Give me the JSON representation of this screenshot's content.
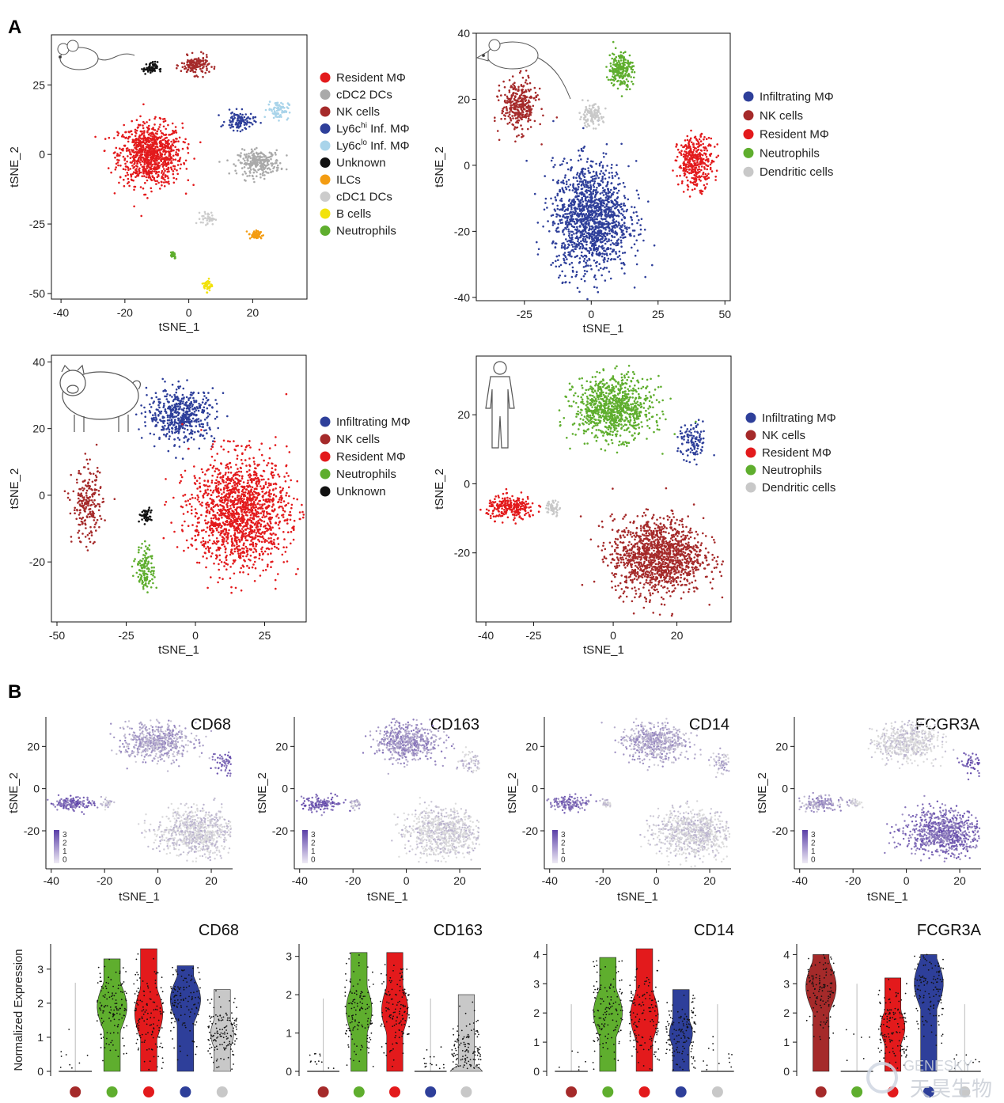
{
  "panel_labels": [
    "A",
    "B"
  ],
  "colors": {
    "resident": "#e31a1c",
    "nk": "#a52a2a",
    "inf": "#2e3f9a",
    "ly6clo": "#a9d4ea",
    "unknown": "#111111",
    "ilc": "#f39c12",
    "cdc1": "#cccccc",
    "cdc2": "#aaaaaa",
    "bcell": "#f2e20a",
    "neut": "#5fae2e",
    "dc": "#c8c8c8",
    "expr_low": "#dcdcdc",
    "expr_high": "#5a3ea8"
  },
  "icons": [
    "mouse-icon",
    "rat-icon",
    "pig-icon",
    "human-icon"
  ],
  "chart_data": [
    {
      "type": "scatter",
      "name_ref": "mouse",
      "xlabel": "tSNE_1",
      "ylabel": "tSNE_2",
      "xlim": [
        -43,
        37
      ],
      "ylim": [
        -52,
        43
      ],
      "xticks": [
        -40,
        -20,
        0,
        20
      ],
      "yticks": [
        -50,
        -25,
        0,
        25
      ],
      "legend_position": "right",
      "clusters": [
        {
          "label": "Resident MΦ",
          "color_key": "resident",
          "center": [
            -12,
            0
          ],
          "spread": [
            9,
            10
          ],
          "n": 900
        },
        {
          "label": "cDC2 DCs",
          "color_key": "cdc2",
          "center": [
            22,
            -3
          ],
          "spread": [
            6,
            4
          ],
          "n": 260
        },
        {
          "label": "NK cells",
          "color_key": "nk",
          "center": [
            2,
            32
          ],
          "spread": [
            4,
            3
          ],
          "n": 150
        },
        {
          "label": "Ly6c",
          "sup": "hi",
          "label_tail": " Inf. MΦ",
          "color_key": "inf",
          "center": [
            16,
            12
          ],
          "spread": [
            4,
            3
          ],
          "n": 110
        },
        {
          "label": "Ly6c",
          "sup": "lo",
          "label_tail": " Inf. MΦ",
          "color_key": "ly6clo",
          "center": [
            28,
            16
          ],
          "spread": [
            3,
            3
          ],
          "n": 80
        },
        {
          "label": "Unknown",
          "color_key": "unknown",
          "center": [
            -12,
            31
          ],
          "spread": [
            2,
            2
          ],
          "n": 60
        },
        {
          "label": "ILCs",
          "color_key": "ilc",
          "center": [
            21,
            -29
          ],
          "spread": [
            2,
            1.5
          ],
          "n": 50
        },
        {
          "label": "cDC1 DCs",
          "color_key": "cdc1",
          "center": [
            6,
            -23
          ],
          "spread": [
            2,
            2
          ],
          "n": 40
        },
        {
          "label": "B cells",
          "color_key": "bcell",
          "center": [
            6,
            -47
          ],
          "spread": [
            1.2,
            2
          ],
          "n": 45
        },
        {
          "label": "Neutrophils",
          "color_key": "neut",
          "center": [
            -5,
            -36
          ],
          "spread": [
            1,
            1.3
          ],
          "n": 30
        }
      ]
    },
    {
      "type": "scatter",
      "name_ref": "rat",
      "xlabel": "tSNE_1",
      "ylabel": "tSNE_2",
      "xlim": [
        -43,
        52
      ],
      "ylim": [
        -41,
        40
      ],
      "xticks": [
        -25,
        0,
        25,
        50
      ],
      "yticks": [
        -40,
        -20,
        0,
        20,
        40
      ],
      "legend_position": "right",
      "clusters": [
        {
          "label": "Infiltrating MΦ",
          "color_key": "inf",
          "center": [
            0,
            -16
          ],
          "spread": [
            13,
            15
          ],
          "n": 1400
        },
        {
          "label": "NK cells",
          "color_key": "nk",
          "center": [
            -27,
            18
          ],
          "spread": [
            6,
            7
          ],
          "n": 330
        },
        {
          "label": "Resident MΦ",
          "color_key": "resident",
          "center": [
            39,
            1
          ],
          "spread": [
            6,
            7
          ],
          "n": 360
        },
        {
          "label": "Neutrophils",
          "color_key": "neut",
          "center": [
            11,
            29
          ],
          "spread": [
            4,
            5
          ],
          "n": 230
        },
        {
          "label": "Dendritic cells",
          "color_key": "dc",
          "center": [
            0,
            15
          ],
          "spread": [
            4,
            3
          ],
          "n": 110
        }
      ]
    },
    {
      "type": "scatter",
      "name_ref": "pig",
      "xlabel": "tSNE_1",
      "ylabel": "tSNE_2",
      "xlim": [
        -52,
        40
      ],
      "ylim": [
        -38,
        42
      ],
      "xticks": [
        -50,
        -25,
        0,
        25
      ],
      "yticks": [
        -20,
        0,
        20,
        40
      ],
      "legend_position": "right",
      "clusters": [
        {
          "label": "Infiltrating MΦ",
          "color_key": "inf",
          "center": [
            -5,
            24
          ],
          "spread": [
            11,
            7
          ],
          "n": 500
        },
        {
          "label": "NK cells",
          "color_key": "nk",
          "center": [
            -39,
            -3
          ],
          "spread": [
            5,
            10
          ],
          "n": 220
        },
        {
          "label": "Resident MΦ",
          "color_key": "resident",
          "center": [
            16,
            -5
          ],
          "spread": [
            16,
            15
          ],
          "n": 1500
        },
        {
          "label": "Neutrophils",
          "color_key": "neut",
          "center": [
            -18,
            -22
          ],
          "spread": [
            3,
            6
          ],
          "n": 130
        },
        {
          "label": "Unknown",
          "color_key": "unknown",
          "center": [
            -18,
            -6
          ],
          "spread": [
            2,
            2
          ],
          "n": 50
        }
      ]
    },
    {
      "type": "scatter",
      "name_ref": "human",
      "xlabel": "tSNE_1",
      "ylabel": "tSNE_2",
      "xlim": [
        -43,
        37
      ],
      "ylim": [
        -40,
        37
      ],
      "xticks": [
        -40,
        -25,
        0,
        20
      ],
      "yticks": [
        -20,
        0,
        20
      ],
      "legend_position": "right",
      "clusters": [
        {
          "label": "Infiltrating MΦ",
          "color_key": "inf",
          "center": [
            25,
            12
          ],
          "spread": [
            4,
            5
          ],
          "n": 110
        },
        {
          "label": "NK cells",
          "color_key": "nk",
          "center": [
            14,
            -21
          ],
          "spread": [
            13,
            10
          ],
          "n": 1300
        },
        {
          "label": "Resident MΦ",
          "color_key": "resident",
          "center": [
            -32,
            -7
          ],
          "spread": [
            7,
            3
          ],
          "n": 250
        },
        {
          "label": "Neutrophils",
          "color_key": "neut",
          "center": [
            0,
            22
          ],
          "spread": [
            11,
            8
          ],
          "n": 900
        },
        {
          "label": "Dendritic cells",
          "color_key": "dc",
          "center": [
            -19,
            -7
          ],
          "spread": [
            2,
            2
          ],
          "n": 50
        }
      ]
    },
    {
      "type": "scatter",
      "title": "CD68",
      "xlabel": "tSNE_1",
      "ylabel": "tSNE_2",
      "xlim": [
        -42,
        28
      ],
      "ylim": [
        -38,
        34
      ],
      "xticks": [
        -40,
        -20,
        0,
        20
      ],
      "yticks": [
        -20,
        0,
        20
      ],
      "colorbar_ticks": [
        3,
        2,
        1,
        0
      ],
      "cluster_expression": {
        "resident": 0.75,
        "neut": 0.35,
        "inf": 0.8,
        "nk": 0.08,
        "dc": 0.15
      }
    },
    {
      "type": "scatter",
      "title": "CD163",
      "xlabel": "tSNE_1",
      "ylabel": "tSNE_2",
      "xlim": [
        -42,
        28
      ],
      "ylim": [
        -38,
        34
      ],
      "xticks": [
        -40,
        -20,
        0,
        20
      ],
      "yticks": [
        -20,
        0,
        20
      ],
      "colorbar_ticks": [
        3,
        2,
        1,
        0
      ],
      "cluster_expression": {
        "resident": 0.75,
        "neut": 0.45,
        "inf": 0.15,
        "nk": 0.05,
        "dc": 0.2
      }
    },
    {
      "type": "scatter",
      "title": "CD14",
      "xlabel": "tSNE_1",
      "ylabel": "tSNE_2",
      "xlim": [
        -42,
        28
      ],
      "ylim": [
        -38,
        34
      ],
      "xticks": [
        -40,
        -20,
        0,
        20
      ],
      "yticks": [
        -20,
        0,
        20
      ],
      "colorbar_ticks": [
        3,
        2,
        1,
        0
      ],
      "cluster_expression": {
        "resident": 0.7,
        "neut": 0.35,
        "inf": 0.25,
        "nk": 0.05,
        "dc": 0.1
      }
    },
    {
      "type": "scatter",
      "title": "FCGR3A",
      "xlabel": "tSNE_1",
      "ylabel": "tSNE_2",
      "xlim": [
        -42,
        28
      ],
      "ylim": [
        -38,
        34
      ],
      "xticks": [
        -40,
        -20,
        0,
        20
      ],
      "yticks": [
        -20,
        0,
        20
      ],
      "colorbar_ticks": [
        3,
        2,
        1,
        0
      ],
      "cluster_expression": {
        "resident": 0.4,
        "neut": 0.03,
        "inf": 0.8,
        "nk": 0.7,
        "dc": 0.05
      }
    },
    {
      "type": "violin",
      "title": "CD68",
      "ylabel": "Normalized Expression",
      "ylim": [
        0,
        3.6
      ],
      "yticks": [
        0,
        1,
        2,
        3
      ],
      "groups": [
        {
          "color_key": "nk",
          "max": 2.6,
          "median": 0,
          "zero_fraction": 0.97
        },
        {
          "color_key": "neut",
          "max": 3.3,
          "median": 1.9,
          "zero_fraction": 0.1
        },
        {
          "color_key": "resident",
          "max": 3.6,
          "median": 1.7,
          "zero_fraction": 0.15
        },
        {
          "color_key": "inf",
          "max": 3.1,
          "median": 2.1,
          "zero_fraction": 0.08
        },
        {
          "color_key": "dc",
          "max": 2.4,
          "median": 1.1,
          "zero_fraction": 0.3
        }
      ]
    },
    {
      "type": "violin",
      "title": "CD163",
      "ylim": [
        0,
        3.2
      ],
      "yticks": [
        0,
        1,
        2,
        3
      ],
      "groups": [
        {
          "color_key": "nk",
          "max": 1.9,
          "median": 0,
          "zero_fraction": 0.97
        },
        {
          "color_key": "neut",
          "max": 3.1,
          "median": 1.6,
          "zero_fraction": 0.2
        },
        {
          "color_key": "resident",
          "max": 3.1,
          "median": 1.6,
          "zero_fraction": 0.18
        },
        {
          "color_key": "inf",
          "max": 1.9,
          "median": 0,
          "zero_fraction": 0.95
        },
        {
          "color_key": "dc",
          "max": 2.0,
          "median": 0.5,
          "zero_fraction": 0.5
        }
      ]
    },
    {
      "type": "violin",
      "title": "CD14",
      "ylim": [
        0,
        4.2
      ],
      "yticks": [
        0,
        1,
        2,
        3,
        4
      ],
      "groups": [
        {
          "color_key": "nk",
          "max": 2.3,
          "median": 0,
          "zero_fraction": 0.97
        },
        {
          "color_key": "neut",
          "max": 3.9,
          "median": 2.0,
          "zero_fraction": 0.12
        },
        {
          "color_key": "resident",
          "max": 4.2,
          "median": 1.9,
          "zero_fraction": 0.15
        },
        {
          "color_key": "inf",
          "max": 2.8,
          "median": 1.3,
          "zero_fraction": 0.3
        },
        {
          "color_key": "dc",
          "max": 2.3,
          "median": 0,
          "zero_fraction": 0.9
        }
      ]
    },
    {
      "type": "violin",
      "title": "FCGR3A",
      "ylim": [
        0,
        4.2
      ],
      "yticks": [
        0,
        1,
        2,
        3,
        4
      ],
      "groups": [
        {
          "color_key": "nk",
          "max": 4.0,
          "median": 2.9,
          "zero_fraction": 0.06
        },
        {
          "color_key": "neut",
          "max": 3.0,
          "median": 0,
          "zero_fraction": 0.85
        },
        {
          "color_key": "resident",
          "max": 3.2,
          "median": 1.5,
          "zero_fraction": 0.25
        },
        {
          "color_key": "inf",
          "max": 4.0,
          "median": 3.0,
          "zero_fraction": 0.1
        },
        {
          "color_key": "dc",
          "max": 2.3,
          "median": 0,
          "zero_fraction": 0.95
        }
      ]
    }
  ],
  "watermark": "天昊生物",
  "watermark_brand": "GENESKY"
}
